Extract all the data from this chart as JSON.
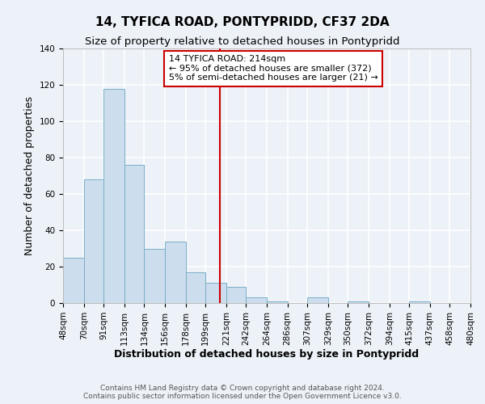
{
  "title": "14, TYFICA ROAD, PONTYPRIDD, CF37 2DA",
  "subtitle": "Size of property relative to detached houses in Pontypridd",
  "xlabel": "Distribution of detached houses by size in Pontypridd",
  "ylabel": "Number of detached properties",
  "bin_edges": [
    48,
    70,
    91,
    113,
    134,
    156,
    178,
    199,
    221,
    242,
    264,
    286,
    307,
    329,
    350,
    372,
    394,
    415,
    437,
    458,
    480
  ],
  "bar_heights": [
    25,
    68,
    118,
    76,
    30,
    34,
    17,
    11,
    9,
    3,
    1,
    0,
    3,
    0,
    1,
    0,
    0,
    1,
    0,
    0
  ],
  "bar_color": "#ccdded",
  "bar_edgecolor": "#7aafc8",
  "vline_x": 214,
  "vline_color": "#cc0000",
  "annotation_text": "14 TYFICA ROAD: 214sqm\n← 95% of detached houses are smaller (372)\n5% of semi-detached houses are larger (21) →",
  "annotation_box_edgecolor": "#cc0000",
  "annotation_box_facecolor": "#ffffff",
  "ylim": [
    0,
    140
  ],
  "yticks": [
    0,
    20,
    40,
    60,
    80,
    100,
    120,
    140
  ],
  "tick_labels": [
    "48sqm",
    "70sqm",
    "91sqm",
    "113sqm",
    "134sqm",
    "156sqm",
    "178sqm",
    "199sqm",
    "221sqm",
    "242sqm",
    "264sqm",
    "286sqm",
    "307sqm",
    "329sqm",
    "350sqm",
    "372sqm",
    "394sqm",
    "415sqm",
    "437sqm",
    "458sqm",
    "480sqm"
  ],
  "footer_text": "Contains HM Land Registry data © Crown copyright and database right 2024.\nContains public sector information licensed under the Open Government Licence v3.0.",
  "background_color": "#edf2f8",
  "grid_color": "#ffffff",
  "title_fontsize": 11,
  "subtitle_fontsize": 9.5,
  "axis_label_fontsize": 9,
  "tick_fontsize": 7.5,
  "annotation_fontsize": 8,
  "footer_fontsize": 6.5
}
